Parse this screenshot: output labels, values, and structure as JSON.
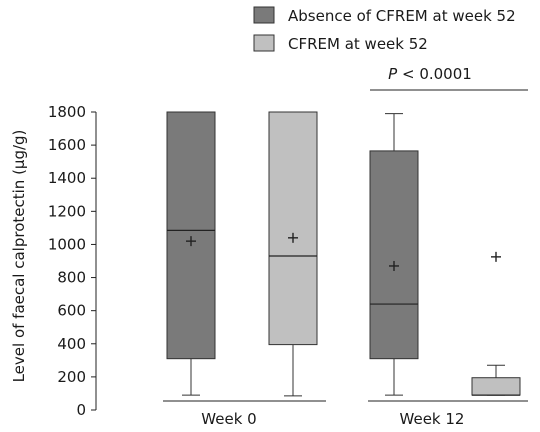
{
  "chart_data": {
    "type": "box",
    "title": "",
    "ylabel": "Level of faecal calprotectin (μg/g)",
    "xlabel": "",
    "ylim": [
      0,
      1800
    ],
    "yticks": [
      0,
      200,
      400,
      600,
      800,
      1000,
      1200,
      1400,
      1600,
      1800
    ],
    "legend_position": "top-right",
    "groups": [
      "Week 0",
      "Week 12"
    ],
    "series": [
      {
        "name": "Absence of CFREM at week 52",
        "color": "#7a7a7a",
        "boxes": [
          {
            "group": "Week 0",
            "whisker_low": 90,
            "q1": 310,
            "median": 1085,
            "q3": 1800,
            "whisker_high": 1800,
            "mean": 1020
          },
          {
            "group": "Week 12",
            "whisker_low": 90,
            "q1": 310,
            "median": 640,
            "q3": 1565,
            "whisker_high": 1790,
            "mean": 870
          }
        ]
      },
      {
        "name": "CFREM at week 52",
        "color": "#c0c0c0",
        "boxes": [
          {
            "group": "Week 0",
            "whisker_low": 85,
            "q1": 395,
            "median": 930,
            "q3": 1800,
            "whisker_high": 1800,
            "mean": 1040
          },
          {
            "group": "Week 12",
            "whisker_low": 90,
            "q1": 90,
            "median": 90,
            "q3": 195,
            "whisker_high": 270,
            "mean": 925
          }
        ]
      }
    ],
    "annotations": [
      {
        "text_italic": "P",
        "text_rest": " < 0.0001",
        "applies_to": "Week 12"
      }
    ]
  }
}
